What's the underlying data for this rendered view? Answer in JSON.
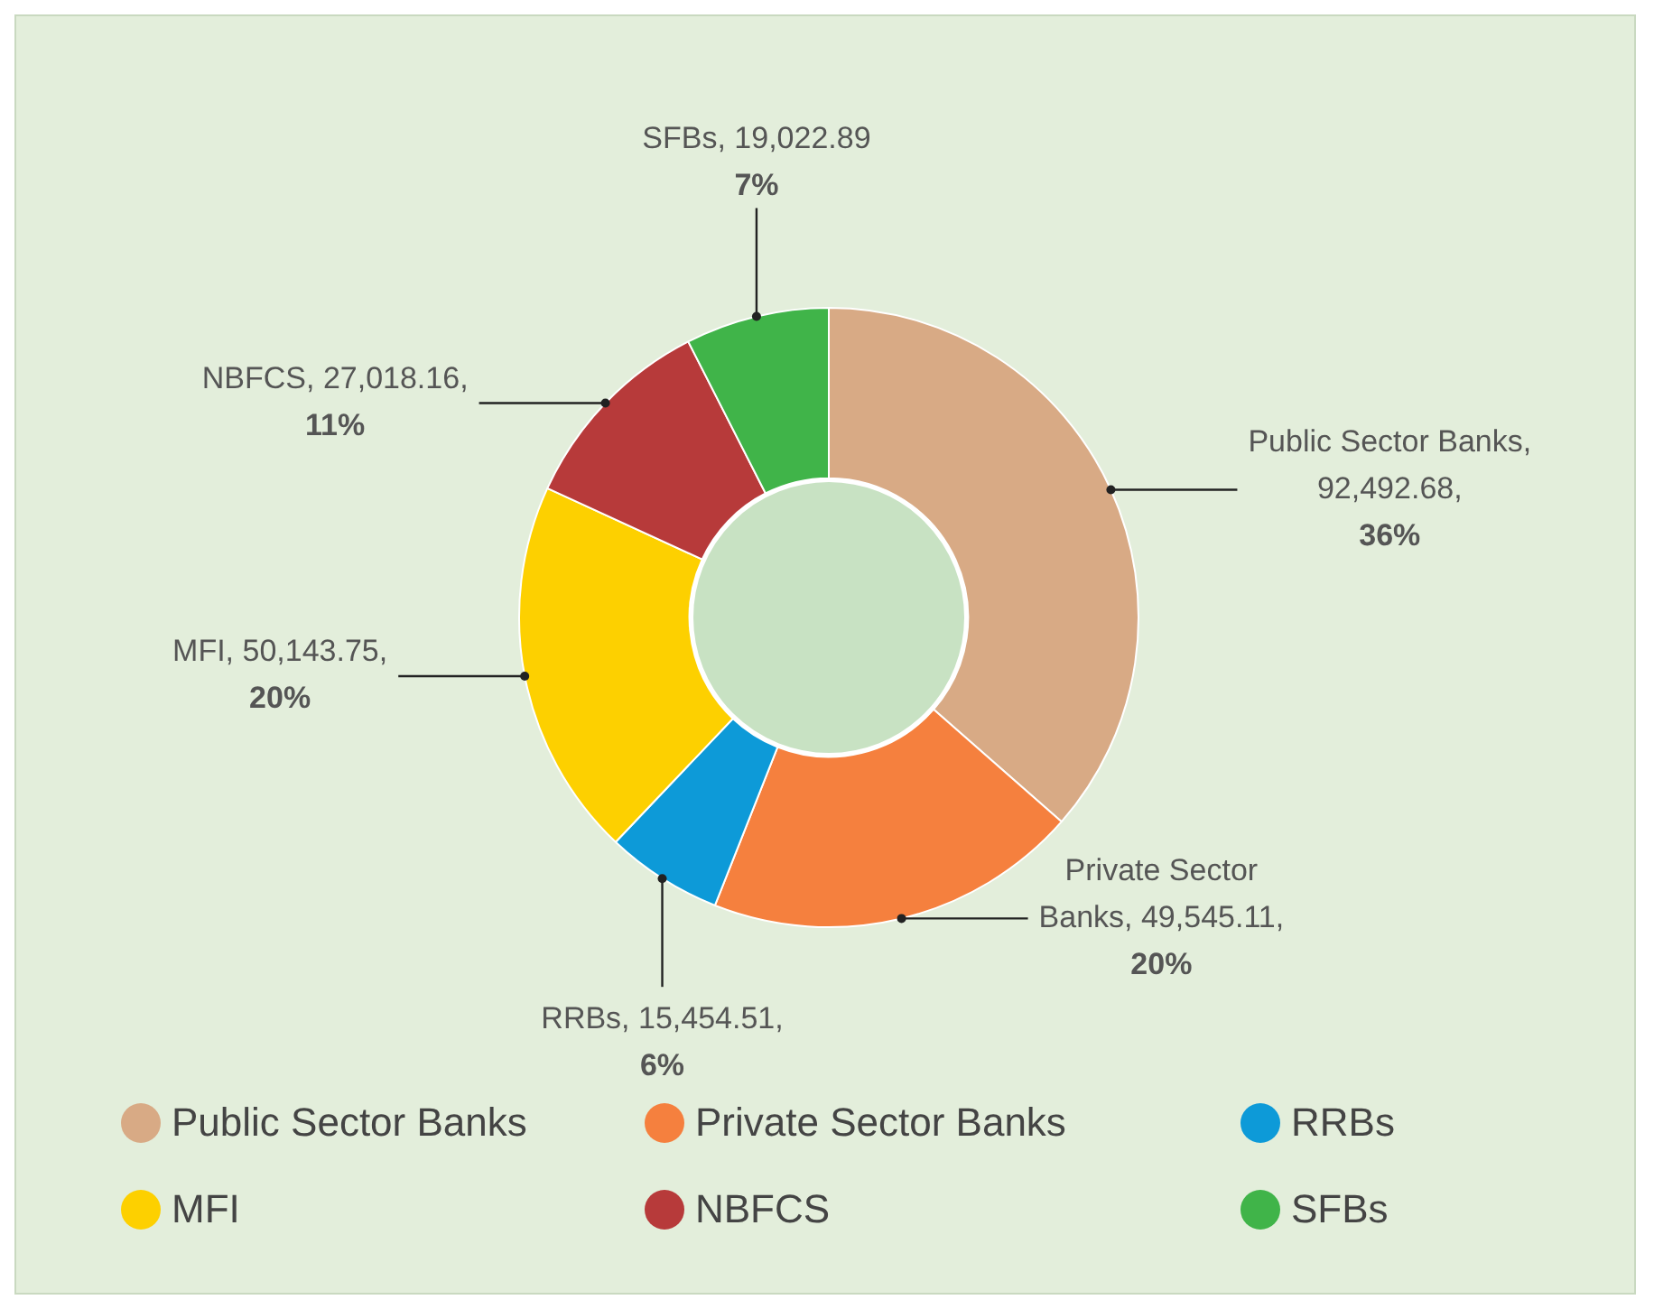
{
  "chart_data": {
    "type": "donut",
    "categories": [
      "Public Sector Banks",
      "Private Sector Banks",
      "RRBs",
      "MFI",
      "NBFCS",
      "SFBs"
    ],
    "values": [
      92492.68,
      49545.11,
      15454.51,
      50143.75,
      27018.16,
      19022.89
    ],
    "colors": [
      "#d8aa85",
      "#f5803e",
      "#0d9ad8",
      "#fdd000",
      "#b73a3a",
      "#40b449"
    ],
    "value_labels": [
      "Public Sector Banks, 92,492.68, 36%",
      "Private Sector Banks, 49,545.11, 20%",
      "RRBs, 15,454.51, 6%",
      "MFI, 50,143.75, 20%",
      "NBFCS, 27,018.16, 11%",
      "SFBs, 19,022.89 7%"
    ],
    "legend": "bottom"
  }
}
